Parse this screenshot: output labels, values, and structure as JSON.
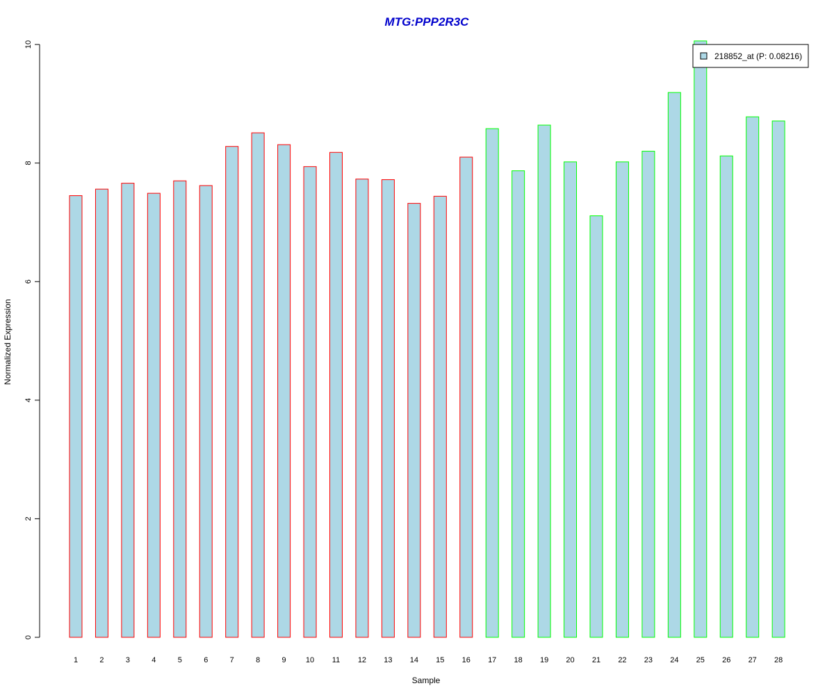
{
  "chart_data": {
    "type": "bar",
    "title": "MTG:PPP2R3C",
    "xlabel": "Sample",
    "ylabel": "Normalized Expression",
    "ylim": [
      0,
      10
    ],
    "yticks": [
      "0",
      "2",
      "4",
      "6",
      "8",
      "10"
    ],
    "categories": [
      "1",
      "2",
      "3",
      "4",
      "5",
      "6",
      "7",
      "8",
      "9",
      "10",
      "11",
      "12",
      "13",
      "14",
      "15",
      "16",
      "17",
      "18",
      "19",
      "20",
      "21",
      "22",
      "23",
      "24",
      "25",
      "26",
      "27",
      "28"
    ],
    "series": [
      {
        "name": "218852_at (P: 0.08216)",
        "values": [
          7.45,
          7.56,
          7.66,
          7.49,
          7.7,
          7.62,
          8.28,
          8.51,
          8.31,
          7.94,
          8.18,
          7.73,
          7.72,
          7.32,
          7.44,
          8.1,
          8.58,
          7.87,
          8.64,
          8.02,
          7.11,
          8.02,
          8.2,
          9.19,
          10.06,
          8.12,
          8.78,
          8.71
        ],
        "groups": [
          1,
          1,
          1,
          1,
          1,
          1,
          1,
          1,
          1,
          1,
          1,
          1,
          1,
          1,
          1,
          1,
          2,
          2,
          2,
          2,
          2,
          2,
          2,
          2,
          2,
          2,
          2,
          2
        ]
      }
    ],
    "grid": false,
    "legend_position": "top-right",
    "colors": {
      "bar_fill": "#add8e6",
      "group1_border": "#ff0000",
      "group2_border": "#00ff00",
      "title": "#0000cc"
    }
  }
}
